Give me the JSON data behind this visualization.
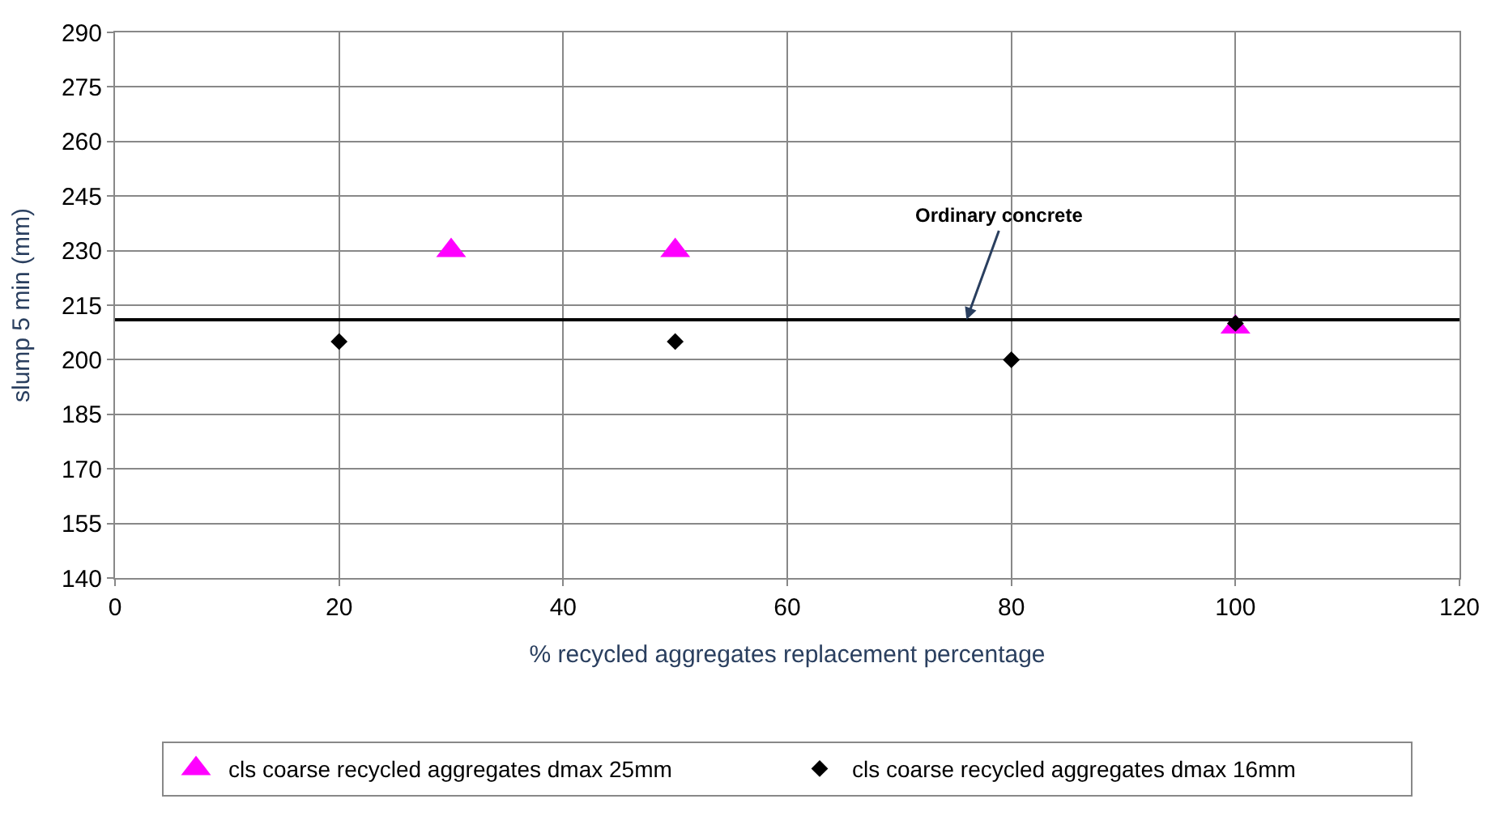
{
  "chart_data": {
    "type": "scatter",
    "xlabel": "% recycled aggregates replacement percentage",
    "ylabel": "slump 5 min (mm)",
    "xlim": [
      0,
      120
    ],
    "xticks": [
      0,
      20,
      40,
      60,
      80,
      100,
      120
    ],
    "ylim": [
      140,
      290
    ],
    "yticks": [
      140,
      155,
      170,
      185,
      200,
      215,
      230,
      245,
      260,
      275,
      290
    ],
    "grid": true,
    "legend": "bottom",
    "series": [
      {
        "name": "cls coarse recycled aggregates dmax 25mm",
        "color": "#ff00ff",
        "marker": "triangle",
        "x": [
          30,
          50,
          100
        ],
        "values": [
          230,
          230,
          209
        ]
      },
      {
        "name": "cls coarse recycled aggregates dmax 16mm",
        "color": "#000000",
        "marker": "diamond",
        "x": [
          20,
          50,
          80,
          100
        ],
        "values": [
          205,
          205,
          200,
          210
        ]
      }
    ],
    "ref_lines": [
      {
        "axis": "y",
        "value": 211,
        "color": "#000000",
        "line_style": "solid"
      }
    ],
    "annotations": [
      {
        "text": "Ordinary concrete",
        "x": 76,
        "y": 211
      }
    ]
  }
}
